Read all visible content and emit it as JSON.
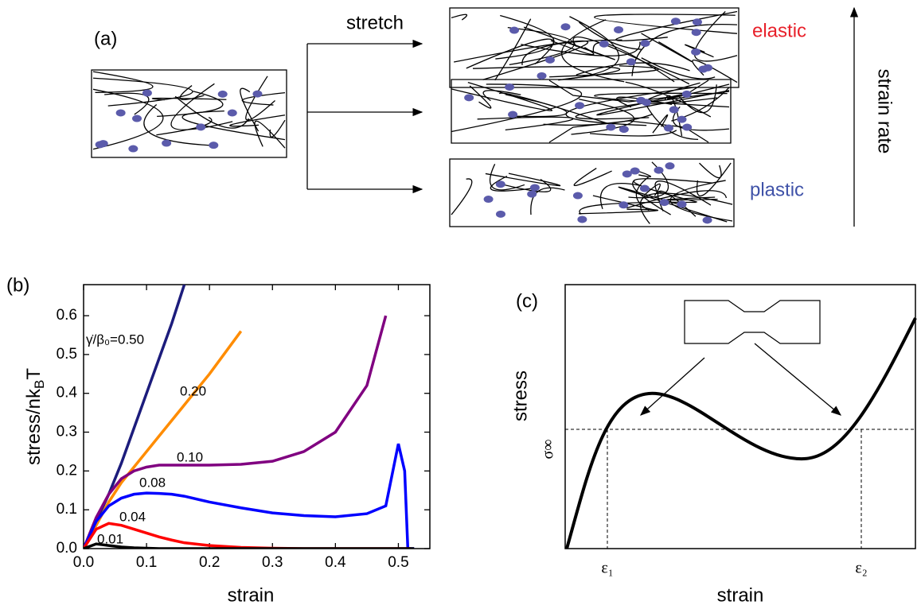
{
  "panel_a": {
    "label": "(a)",
    "arrow_label": "stretch",
    "elastic": "elastic",
    "plastic": "plastic",
    "rate_label": "strain rate"
  },
  "chart_data": {
    "type": "line",
    "label": "(b)",
    "x_label": "strain",
    "y_label": [
      "stress/nk",
      "B",
      "T"
    ],
    "xlim": [
      0,
      0.55
    ],
    "ylim": [
      0,
      0.68
    ],
    "xticks": [
      {
        "value": 0,
        "label": "0.0"
      },
      0.1,
      0.2,
      0.3,
      0.4,
      0.5
    ],
    "yticks": [
      {
        "value": 0,
        "label": "0.0"
      },
      0.1,
      0.2,
      0.3,
      0.4,
      0.5,
      0.6
    ],
    "x": [
      0,
      0.02,
      0.04,
      0.06,
      0.08,
      0.1,
      0.12,
      0.14,
      0.16,
      0.2,
      0.25,
      0.3,
      0.35,
      0.4,
      0.45,
      0.48,
      0.5,
      0.51,
      0.515,
      0.52,
      0.525
    ],
    "series": [
      {
        "name": "γ̇/β₀=0.50",
        "color": "#1c1c7c",
        "values": [
          0,
          0.07,
          0.14,
          0.22,
          0.31,
          0.4,
          0.49,
          0.58,
          0.68,
          null,
          null,
          null,
          null,
          null,
          null,
          null,
          null,
          null,
          null,
          null,
          null
        ]
      },
      {
        "name": "0.20",
        "color": "#ff8c00",
        "values": [
          0,
          0.06,
          0.12,
          0.17,
          0.21,
          0.25,
          0.29,
          0.33,
          0.37,
          0.45,
          0.56,
          null,
          null,
          null,
          null,
          null,
          null,
          null,
          null,
          null,
          null
        ]
      },
      {
        "name": "0.10",
        "color": "#800080",
        "values": [
          0,
          0.08,
          0.14,
          0.18,
          0.2,
          0.21,
          0.215,
          0.215,
          0.215,
          0.215,
          0.217,
          0.225,
          0.25,
          0.3,
          0.42,
          0.6,
          null,
          null,
          null,
          null,
          null
        ]
      },
      {
        "name": "0.08",
        "color": "#0000ff",
        "values": [
          0,
          0.07,
          0.11,
          0.13,
          0.14,
          0.143,
          0.142,
          0.14,
          0.135,
          0.12,
          0.105,
          0.092,
          0.085,
          0.082,
          0.09,
          0.11,
          0.27,
          0.2,
          0,
          0,
          0
        ]
      },
      {
        "name": "0.04",
        "color": "#ff0000",
        "values": [
          0,
          0.05,
          0.065,
          0.06,
          0.05,
          0.04,
          0.03,
          0.022,
          0.015,
          0.008,
          0.003,
          0.001,
          0,
          0,
          0,
          0,
          0,
          0,
          0,
          0,
          null
        ]
      },
      {
        "name": "0.01",
        "color": "#000000",
        "values": [
          0,
          0.012,
          0.008,
          0.004,
          0.002,
          0.001,
          0,
          0,
          0,
          0,
          0,
          0,
          0,
          0,
          0,
          0,
          0,
          0,
          0,
          0,
          0
        ]
      }
    ]
  },
  "panel_c": {
    "label": "(c)",
    "y_label": "stress",
    "x_label": "strain",
    "sigma": "σ∞",
    "eps1": "ε₁",
    "eps2": "ε₂"
  }
}
